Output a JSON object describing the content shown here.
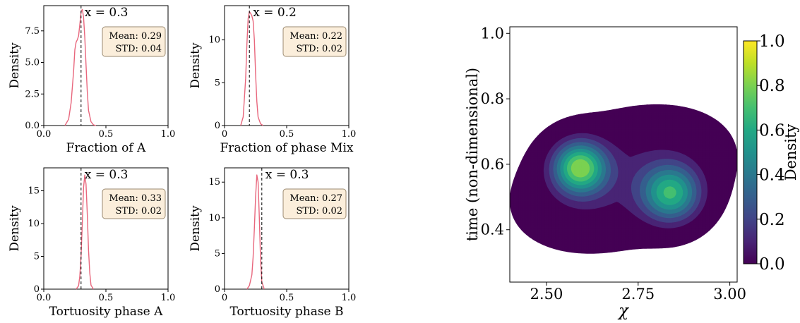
{
  "chart_data": [
    {
      "type": "line",
      "name": "fraction-a",
      "xlabel": "Fraction of A",
      "ylabel": "Density",
      "xlim": [
        0,
        1
      ],
      "ylim": [
        0,
        9.5
      ],
      "xticks": [
        0,
        0.5,
        1
      ],
      "xtick_labels": [
        "0.0",
        "0.5",
        "1.0"
      ],
      "yticks": [
        0,
        2.5,
        5,
        7.5
      ],
      "ytick_labels": [
        "0.0",
        "2.5",
        "5.0",
        "7.5"
      ],
      "series": [
        {
          "color": "#e8677d",
          "x": [
            0.17,
            0.2,
            0.22,
            0.24,
            0.25,
            0.26,
            0.27,
            0.28,
            0.29,
            0.3,
            0.31,
            0.32,
            0.33,
            0.34,
            0.35,
            0.36,
            0.38,
            0.4,
            0.42
          ],
          "y": [
            0,
            0.5,
            1.8,
            4.3,
            6.0,
            6.6,
            6.8,
            7.1,
            8.0,
            9.0,
            9.2,
            8.6,
            7.0,
            4.8,
            2.7,
            1.2,
            0.3,
            0.05,
            0
          ]
        }
      ],
      "vline": {
        "x": 0.3,
        "label": "x = 0.3"
      },
      "stats": {
        "mean": "Mean: 0.29",
        "std": "STD: 0.04"
      }
    },
    {
      "type": "line",
      "name": "fraction-mix",
      "xlabel": "Fraction of phase Mix",
      "ylabel": "Density",
      "xlim": [
        0,
        1
      ],
      "ylim": [
        0,
        14
      ],
      "xticks": [
        0,
        0.5,
        1
      ],
      "xtick_labels": [
        "0",
        "0.5",
        "1.0"
      ],
      "yticks": [
        0,
        5,
        10
      ],
      "ytick_labels": [
        "0",
        "5",
        "10"
      ],
      "series": [
        {
          "color": "#e8677d",
          "x": [
            0.13,
            0.15,
            0.17,
            0.18,
            0.19,
            0.2,
            0.21,
            0.22,
            0.23,
            0.24,
            0.25,
            0.26,
            0.27,
            0.29,
            0.31
          ],
          "y": [
            0,
            1.0,
            5.5,
            9.5,
            12.5,
            13.3,
            13.1,
            12.8,
            12.2,
            10.0,
            6.0,
            2.8,
            1.0,
            0.2,
            0
          ]
        }
      ],
      "vline": {
        "x": 0.2,
        "label": "x = 0.2"
      },
      "stats": {
        "mean": "Mean: 0.22",
        "std": "STD: 0.02"
      }
    },
    {
      "type": "line",
      "name": "tortuosity-a",
      "xlabel": "Tortuosity phase A",
      "ylabel": "Density",
      "xlim": [
        0,
        1
      ],
      "ylim": [
        0,
        18.5
      ],
      "xticks": [
        0,
        0.5,
        1
      ],
      "xtick_labels": [
        "0.0",
        "0.5",
        "1.0"
      ],
      "yticks": [
        0,
        5,
        10,
        15
      ],
      "ytick_labels": [
        "0",
        "5",
        "10",
        "15"
      ],
      "series": [
        {
          "color": "#e8677d",
          "x": [
            0.26,
            0.28,
            0.29,
            0.3,
            0.31,
            0.32,
            0.33,
            0.34,
            0.35,
            0.36,
            0.37,
            0.38,
            0.4
          ],
          "y": [
            0,
            0.5,
            2.0,
            5.0,
            10.0,
            15.5,
            17.4,
            16.0,
            11.5,
            6.0,
            2.5,
            0.6,
            0
          ]
        }
      ],
      "vline": {
        "x": 0.3,
        "label": "x = 0.3"
      },
      "stats": {
        "mean": "Mean: 0.33",
        "std": "STD: 0.02"
      }
    },
    {
      "type": "line",
      "name": "tortuosity-b",
      "xlabel": "Tortuosity phase B",
      "ylabel": "Density",
      "xlim": [
        0,
        1
      ],
      "ylim": [
        0,
        17
      ],
      "xticks": [
        0,
        0.5,
        1
      ],
      "xtick_labels": [
        "0",
        "0.5",
        "1.0"
      ],
      "yticks": [
        0,
        5,
        10,
        15
      ],
      "ytick_labels": [
        "0",
        "5",
        "10",
        "15"
      ],
      "series": [
        {
          "color": "#e8677d",
          "x": [
            0.18,
            0.2,
            0.22,
            0.23,
            0.24,
            0.25,
            0.26,
            0.27,
            0.28,
            0.29,
            0.3,
            0.32
          ],
          "y": [
            0,
            0.5,
            2.0,
            4.5,
            8.5,
            13.0,
            16.0,
            15.0,
            10.0,
            4.0,
            1.0,
            0
          ]
        }
      ],
      "vline": {
        "x": 0.3,
        "label": "x = 0.3"
      },
      "stats": {
        "mean": "Mean: 0.27",
        "std": "STD: 0.02"
      }
    },
    {
      "type": "heatmap",
      "name": "kde-density",
      "xlabel": "χ",
      "ylabel": "time (non-dimensional)",
      "xlim": [
        2.4,
        3.02
      ],
      "ylim": [
        0.24,
        1.02
      ],
      "xticks": [
        2.5,
        2.75,
        3.0
      ],
      "xtick_labels": [
        "2.50",
        "2.75",
        "3.00"
      ],
      "yticks": [
        0.4,
        0.6,
        0.8,
        1.0
      ],
      "ytick_labels": [
        "0.4",
        "0.6",
        "0.8",
        "1.0"
      ],
      "peaks": [
        {
          "x": 2.59,
          "y": 0.59,
          "density": 1.0
        },
        {
          "x": 2.84,
          "y": 0.51,
          "density": 0.82
        }
      ],
      "levels": [
        0.0,
        0.1,
        0.2,
        0.3,
        0.4,
        0.5,
        0.6,
        0.7,
        0.8,
        0.9,
        1.0
      ],
      "colorbar": {
        "label": "Density",
        "ticks": [
          0,
          0.2,
          0.4,
          0.6,
          0.8,
          1.0
        ],
        "tick_labels": [
          "0.0",
          "0.2",
          "0.4",
          "0.6",
          "0.8",
          "1.0"
        ]
      },
      "colormap": [
        "#440154",
        "#482475",
        "#414487",
        "#355f8d",
        "#2a788e",
        "#21918c",
        "#22a884",
        "#44bf70",
        "#7ad151",
        "#bddf26",
        "#fde725"
      ]
    }
  ]
}
